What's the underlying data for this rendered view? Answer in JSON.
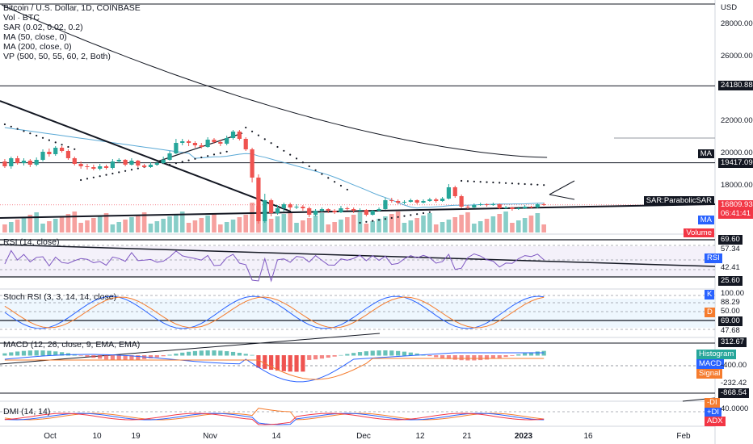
{
  "header": {
    "title": "Bitcoin / U.S. Dollar, 1D, COINBASE",
    "vol": "Vol · BTC",
    "indicators": [
      "SAR (0.02, 0.02, 0.2)",
      "MA (50, close, 0)",
      "MA (200, close, 0)",
      "VP (500, 50, 55, 60, 2, Both)"
    ],
    "currency": "USD"
  },
  "price_axis": {
    "ticks": [
      {
        "v": 28000,
        "label": "28000.00"
      },
      {
        "v": 26000,
        "label": "26000.00"
      },
      {
        "v": 22000,
        "label": "22000.00"
      },
      {
        "v": 20000,
        "label": "20000.00"
      },
      {
        "v": 18000,
        "label": "18000.00"
      }
    ],
    "marked": [
      {
        "v": 24180.88,
        "label": "24180.88",
        "style": "black"
      },
      {
        "v": 19417.09,
        "label": "19417.09",
        "style": "black"
      },
      {
        "v": 16809.93,
        "label": "16809.93",
        "style": "red"
      },
      {
        "v": 16809.93,
        "label": "06:41:41",
        "style": "red2"
      }
    ],
    "pane_tags": [
      {
        "label": "MA",
        "v": 20000,
        "color": "#131722"
      },
      {
        "label": "SAR:ParabolicSAR",
        "v": 17100,
        "color": "#131722"
      },
      {
        "label": "MA",
        "v": 15900,
        "color": "#2962ff"
      },
      {
        "label": "Volume",
        "v": 15100,
        "color": "#f23645"
      }
    ]
  },
  "rsi": {
    "title": "RSI (14, close)",
    "levels": [
      {
        "label": "69.60",
        "style": "black"
      },
      {
        "label": "57.34",
        "style": "plain"
      },
      {
        "label": "RSI",
        "style": "blue"
      },
      {
        "label": "42.41",
        "style": "plain"
      },
      {
        "label": "25.60",
        "style": "black"
      }
    ]
  },
  "stoch": {
    "title": "Stoch RSI (3, 3, 14, 14, close)",
    "levels": [
      {
        "label": "K",
        "style": "blue"
      },
      {
        "label": "100.00",
        "style": "plain"
      },
      {
        "label": "88.29",
        "style": "plain"
      },
      {
        "label": "50.00",
        "style": "plain"
      },
      {
        "label": "D",
        "style": "orange"
      },
      {
        "label": "69.00",
        "style": "black"
      },
      {
        "label": "47.68",
        "style": "plain"
      }
    ]
  },
  "macd": {
    "title": "MACD (12, 26, close, 9, EMA, EMA)",
    "levels": [
      {
        "label": "312.67",
        "style": "black"
      },
      {
        "label": "Histogram",
        "style": "teal"
      },
      {
        "label": "MACD",
        "style": "blue"
      },
      {
        "label": "Signal",
        "style": "orange"
      },
      {
        "label": "-400.00",
        "style": "plain"
      },
      {
        "label": "-232.42",
        "style": "plain"
      },
      {
        "label": "-868.54",
        "style": "black"
      }
    ]
  },
  "dmi": {
    "title": "DMI (14, 14)",
    "levels": [
      {
        "label": "-DI",
        "style": "orange"
      },
      {
        "label": "+DI",
        "style": "blue"
      },
      {
        "label": "40.0000",
        "style": "plain"
      },
      {
        "label": "ADX",
        "style": "red"
      }
    ]
  },
  "time_axis": [
    "Oct",
    "10",
    "19",
    "Nov",
    "14",
    "Dec",
    "12",
    "21",
    "2023",
    "16",
    "Feb"
  ],
  "colors": {
    "up": "#26a69a",
    "down": "#ef5350",
    "ma50": "#5aa9d6",
    "ma200": "#131722",
    "signal": "#f57c2e",
    "macd": "#2962ff",
    "adx": "#f23645"
  },
  "chart_data": {
    "type": "candlestick",
    "ylim": [
      15000,
      29500
    ],
    "x_categories_start": "2022-09-24",
    "candles": [
      [
        19500,
        19200,
        19650,
        19100
      ],
      [
        19200,
        19700,
        19800,
        19050
      ],
      [
        19700,
        19400,
        19850,
        19300
      ],
      [
        19400,
        19550,
        19700,
        19250
      ],
      [
        19550,
        19300,
        19650,
        19150
      ],
      [
        19300,
        19600,
        19750,
        19200
      ],
      [
        19600,
        20100,
        20250,
        19500
      ],
      [
        20100,
        19950,
        20300,
        19800
      ],
      [
        19950,
        20350,
        20450,
        19850
      ],
      [
        20350,
        20150,
        20450,
        20050
      ],
      [
        20150,
        19700,
        20250,
        19600
      ],
      [
        19700,
        19350,
        19800,
        19250
      ],
      [
        19350,
        19200,
        19500,
        19050
      ],
      [
        19200,
        19150,
        19350,
        19000
      ],
      [
        19150,
        19050,
        19300,
        18950
      ],
      [
        19050,
        19200,
        19350,
        18950
      ],
      [
        19200,
        19100,
        19300,
        19000
      ],
      [
        19100,
        19500,
        19650,
        19000
      ],
      [
        19500,
        19600,
        19700,
        19400
      ],
      [
        19600,
        19300,
        19650,
        19200
      ],
      [
        19300,
        19550,
        19700,
        19250
      ],
      [
        19550,
        19250,
        19600,
        19150
      ],
      [
        19250,
        19150,
        19350,
        19100
      ],
      [
        19150,
        19300,
        19450,
        19100
      ],
      [
        19300,
        19400,
        19500,
        19250
      ],
      [
        19400,
        19600,
        19800,
        19350
      ],
      [
        19600,
        20000,
        20150,
        19550
      ],
      [
        20000,
        20650,
        20900,
        19950
      ],
      [
        20650,
        20750,
        20900,
        20500
      ],
      [
        20750,
        20650,
        20850,
        20450
      ],
      [
        20650,
        20500,
        20750,
        20350
      ],
      [
        20500,
        20400,
        20650,
        20300
      ],
      [
        20400,
        20850,
        21000,
        20350
      ],
      [
        20850,
        20700,
        20950,
        20600
      ],
      [
        20700,
        20600,
        20850,
        20450
      ],
      [
        20600,
        20950,
        21100,
        20500
      ],
      [
        20950,
        21350,
        21450,
        20850
      ],
      [
        21350,
        20900,
        21450,
        20800
      ],
      [
        20900,
        20250,
        21000,
        20150
      ],
      [
        20250,
        18500,
        20350,
        18200
      ],
      [
        18500,
        15800,
        18700,
        15650
      ],
      [
        15800,
        17100,
        17500,
        15700
      ],
      [
        17100,
        16300,
        17200,
        16100
      ],
      [
        16300,
        16600,
        16800,
        16200
      ],
      [
        16600,
        16850,
        16950,
        16400
      ],
      [
        16850,
        16650,
        16950,
        16500
      ],
      [
        16650,
        16700,
        16850,
        16550
      ],
      [
        16700,
        16600,
        16800,
        16450
      ],
      [
        16600,
        16200,
        16700,
        16050
      ],
      [
        16200,
        16450,
        16550,
        16100
      ],
      [
        16450,
        16550,
        16650,
        16350
      ],
      [
        16550,
        16450,
        16600,
        16300
      ],
      [
        16450,
        16350,
        16550,
        16250
      ],
      [
        16350,
        16600,
        16750,
        16300
      ],
      [
        16600,
        16550,
        16700,
        16450
      ],
      [
        16550,
        16450,
        16650,
        16300
      ],
      [
        16450,
        16500,
        16600,
        16350
      ],
      [
        16500,
        16200,
        16550,
        16100
      ],
      [
        16200,
        16450,
        16500,
        16150
      ],
      [
        16450,
        16550,
        16650,
        16400
      ],
      [
        16550,
        17100,
        17250,
        16500
      ],
      [
        17100,
        17050,
        17250,
        16950
      ],
      [
        17050,
        16950,
        17150,
        16850
      ],
      [
        16950,
        17000,
        17100,
        16850
      ],
      [
        17000,
        17100,
        17200,
        16950
      ],
      [
        17100,
        16950,
        17150,
        16850
      ],
      [
        16950,
        17050,
        17150,
        16900
      ],
      [
        17050,
        17150,
        17250,
        17000
      ],
      [
        17150,
        17050,
        17250,
        16950
      ],
      [
        17050,
        17200,
        17300,
        17000
      ],
      [
        17200,
        17900,
        18100,
        17150
      ],
      [
        17900,
        17350,
        18000,
        17250
      ],
      [
        17350,
        16700,
        17450,
        16600
      ],
      [
        16700,
        16650,
        16800,
        16550
      ],
      [
        16650,
        16800,
        16900,
        16600
      ],
      [
        16800,
        16850,
        16950,
        16750
      ],
      [
        16850,
        16800,
        16900,
        16700
      ],
      [
        16800,
        16850,
        16950,
        16750
      ],
      [
        16850,
        16600,
        16900,
        16550
      ],
      [
        16600,
        16650,
        16750,
        16550
      ],
      [
        16650,
        16550,
        16700,
        16450
      ],
      [
        16550,
        16600,
        16700,
        16500
      ],
      [
        16600,
        16700,
        16800,
        16550
      ],
      [
        16700,
        16650,
        16750,
        16600
      ],
      [
        16650,
        16850,
        16900,
        16600
      ],
      [
        16850,
        16800,
        16950,
        16750
      ]
    ]
  }
}
